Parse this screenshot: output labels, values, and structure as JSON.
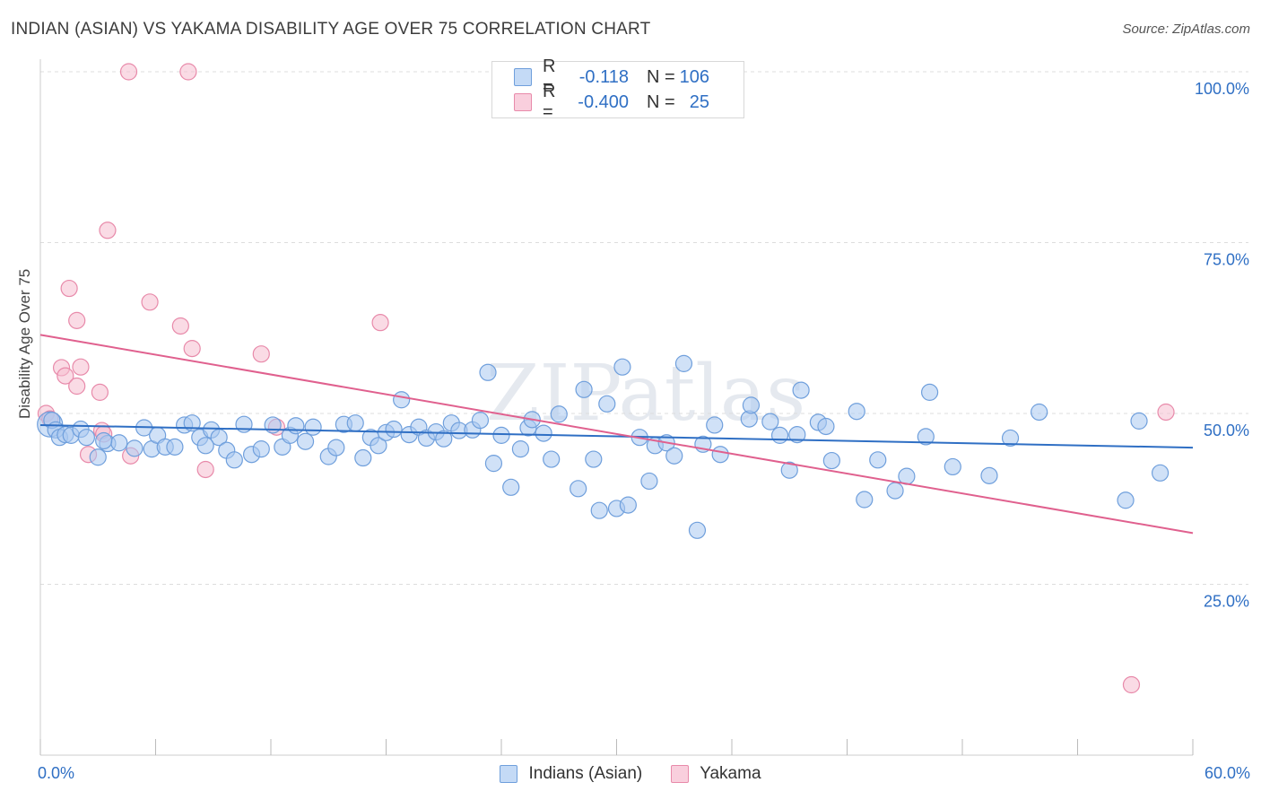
{
  "title": "INDIAN (ASIAN) VS YAKAMA DISABILITY AGE OVER 75 CORRELATION CHART",
  "source": "Source: ZipAtlas.com",
  "watermark": "ZIPatlas",
  "colors": {
    "blue_fill": "#a9c8f0",
    "blue_stroke": "#6f9fdc",
    "blue_line": "#2f6fc4",
    "pink_fill": "#f6bdd0",
    "pink_stroke": "#e88aaa",
    "pink_line": "#e0608e",
    "axis_text": "#2f6fc4",
    "grid": "#dddddd"
  },
  "legend": {
    "rows": [
      {
        "r_label": "R = ",
        "r_value": "-0.118",
        "n_label": "N = ",
        "n_value": "106"
      },
      {
        "r_label": "R = ",
        "r_value": "-0.400",
        "n_label": "N = ",
        "n_value": "25"
      }
    ]
  },
  "chart_data": {
    "type": "scatter",
    "title": "INDIAN (ASIAN) VS YAKAMA DISABILITY AGE OVER 75 CORRELATION CHART",
    "xlabel": "",
    "ylabel": "Disability Age Over 75",
    "xlim": [
      0,
      60
    ],
    "ylim": [
      0,
      105
    ],
    "x_tick_labels": [
      "0.0%",
      "60.0%"
    ],
    "y_ticks": [
      25,
      50,
      75,
      100
    ],
    "y_tick_labels": [
      "25.0%",
      "50.0%",
      "75.0%",
      "100.0%"
    ],
    "grid": true,
    "legend_position": "top-center",
    "series": [
      {
        "name": "Indians (Asian)",
        "color": "#a9c8f0",
        "trend": {
          "x": [
            0,
            60
          ],
          "y": [
            48.3,
            45.0
          ]
        },
        "points": [
          [
            0.5,
            48.4
          ],
          [
            0.6,
            49.0
          ],
          [
            0.8,
            47.6
          ],
          [
            1.0,
            46.5
          ],
          [
            1.3,
            46.9
          ],
          [
            1.6,
            46.8
          ],
          [
            2.1,
            47.7
          ],
          [
            2.4,
            46.5
          ],
          [
            3.0,
            43.6
          ],
          [
            3.5,
            45.6
          ],
          [
            4.1,
            45.7
          ],
          [
            4.9,
            44.9
          ],
          [
            5.4,
            47.9
          ],
          [
            5.8,
            44.8
          ],
          [
            6.1,
            46.8
          ],
          [
            6.5,
            45.1
          ],
          [
            7.0,
            45.1
          ],
          [
            7.5,
            48.3
          ],
          [
            7.9,
            48.6
          ],
          [
            8.3,
            46.5
          ],
          [
            8.9,
            47.6
          ],
          [
            9.3,
            46.5
          ],
          [
            9.7,
            44.6
          ],
          [
            10.1,
            43.2
          ],
          [
            10.6,
            48.4
          ],
          [
            11.0,
            44.0
          ],
          [
            11.5,
            44.8
          ],
          [
            12.1,
            48.3
          ],
          [
            12.6,
            45.1
          ],
          [
            13.0,
            46.8
          ],
          [
            13.3,
            48.2
          ],
          [
            13.8,
            45.9
          ],
          [
            14.2,
            48.0
          ],
          [
            15.0,
            43.7
          ],
          [
            15.4,
            45.0
          ],
          [
            15.8,
            48.4
          ],
          [
            16.4,
            48.6
          ],
          [
            16.8,
            43.5
          ],
          [
            17.2,
            46.5
          ],
          [
            17.6,
            45.3
          ],
          [
            18.0,
            47.2
          ],
          [
            18.4,
            47.7
          ],
          [
            18.8,
            52.0
          ],
          [
            19.2,
            46.9
          ],
          [
            19.7,
            48.0
          ],
          [
            20.1,
            46.4
          ],
          [
            20.6,
            47.3
          ],
          [
            21.0,
            46.3
          ],
          [
            21.4,
            48.6
          ],
          [
            21.8,
            47.5
          ],
          [
            22.5,
            47.6
          ],
          [
            22.9,
            49.0
          ],
          [
            23.3,
            56.0
          ],
          [
            23.6,
            42.7
          ],
          [
            24.0,
            46.8
          ],
          [
            24.5,
            39.2
          ],
          [
            25.0,
            44.8
          ],
          [
            25.4,
            47.9
          ],
          [
            25.6,
            49.1
          ],
          [
            26.2,
            47.1
          ],
          [
            26.6,
            43.3
          ],
          [
            27.0,
            49.9
          ],
          [
            28.0,
            39.0
          ],
          [
            28.3,
            53.5
          ],
          [
            28.8,
            43.3
          ],
          [
            29.5,
            51.4
          ],
          [
            29.1,
            35.8
          ],
          [
            30.0,
            36.1
          ],
          [
            30.6,
            36.6
          ],
          [
            30.3,
            56.8
          ],
          [
            31.2,
            46.5
          ],
          [
            31.7,
            40.1
          ],
          [
            32.0,
            45.3
          ],
          [
            32.6,
            45.7
          ],
          [
            33.0,
            43.8
          ],
          [
            33.5,
            57.3
          ],
          [
            34.2,
            32.9
          ],
          [
            34.5,
            45.5
          ],
          [
            35.1,
            48.3
          ],
          [
            35.4,
            44.0
          ],
          [
            36.9,
            49.2
          ],
          [
            37.0,
            51.2
          ],
          [
            38.0,
            48.8
          ],
          [
            38.5,
            46.8
          ],
          [
            39.0,
            41.7
          ],
          [
            39.4,
            46.9
          ],
          [
            39.6,
            53.4
          ],
          [
            40.5,
            48.7
          ],
          [
            40.9,
            48.1
          ],
          [
            41.2,
            43.1
          ],
          [
            42.5,
            50.3
          ],
          [
            42.9,
            37.4
          ],
          [
            43.6,
            43.2
          ],
          [
            44.5,
            38.7
          ],
          [
            45.1,
            40.8
          ],
          [
            46.1,
            46.6
          ],
          [
            46.3,
            53.1
          ],
          [
            47.5,
            42.2
          ],
          [
            49.4,
            40.9
          ],
          [
            50.5,
            46.4
          ],
          [
            52.0,
            50.2
          ],
          [
            56.5,
            37.3
          ],
          [
            57.2,
            48.9
          ],
          [
            58.3,
            41.3
          ],
          [
            3.3,
            46.0
          ],
          [
            8.6,
            45.3
          ]
        ]
      },
      {
        "name": "Yakama",
        "color": "#f6bdd0",
        "trend": {
          "x": [
            0,
            60
          ],
          "y": [
            61.5,
            32.5
          ]
        },
        "points": [
          [
            0.3,
            50.0
          ],
          [
            0.5,
            49.2
          ],
          [
            1.1,
            56.7
          ],
          [
            1.3,
            55.5
          ],
          [
            1.5,
            68.3
          ],
          [
            1.9,
            54.0
          ],
          [
            2.1,
            56.8
          ],
          [
            2.5,
            44.0
          ],
          [
            3.1,
            53.1
          ],
          [
            3.2,
            47.5
          ],
          [
            3.5,
            76.8
          ],
          [
            4.6,
            100.0
          ],
          [
            4.7,
            43.8
          ],
          [
            5.7,
            66.3
          ],
          [
            7.3,
            62.8
          ],
          [
            7.7,
            100.0
          ],
          [
            7.9,
            59.5
          ],
          [
            8.6,
            41.8
          ],
          [
            11.5,
            58.7
          ],
          [
            12.3,
            48.0
          ],
          [
            17.7,
            63.3
          ],
          [
            56.8,
            10.3
          ],
          [
            58.6,
            50.2
          ],
          [
            1.9,
            63.6
          ],
          [
            3.3,
            47.0
          ]
        ]
      }
    ]
  },
  "bottom_legend": [
    {
      "label": "Indians (Asian)",
      "color": "#a9c8f0"
    },
    {
      "label": "Yakama",
      "color": "#f6bdd0"
    }
  ]
}
